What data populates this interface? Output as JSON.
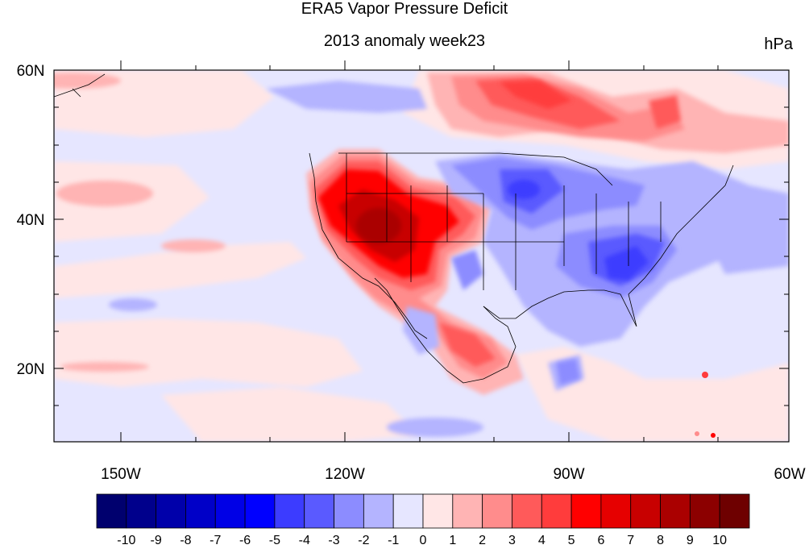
{
  "title": "ERA5 Vapor Pressure Deficit",
  "subtitle": "2013 anomaly week23",
  "units": "hPa",
  "lat_labels": [
    "60N",
    "40N",
    "20N"
  ],
  "lon_labels": [
    "150W",
    "120W",
    "90W",
    "60W"
  ],
  "colorbar": {
    "labels": [
      "-10",
      "-9",
      "-8",
      "-7",
      "-6",
      "-5",
      "-4",
      "-3",
      "-2",
      "-1",
      "0",
      "1",
      "2",
      "3",
      "4",
      "5",
      "6",
      "7",
      "8",
      "9",
      "10"
    ],
    "colors": [
      "#00006e",
      "#00008c",
      "#0000aa",
      "#0000c8",
      "#0000e6",
      "#0000ff",
      "#3c3cff",
      "#5a5aff",
      "#8c8cff",
      "#b4b4ff",
      "#e6e6ff",
      "#ffe6e6",
      "#ffb4b4",
      "#ff8c8c",
      "#ff5a5a",
      "#ff3c3c",
      "#ff0000",
      "#e60000",
      "#c80000",
      "#aa0000",
      "#8c0000",
      "#6e0000"
    ]
  }
}
